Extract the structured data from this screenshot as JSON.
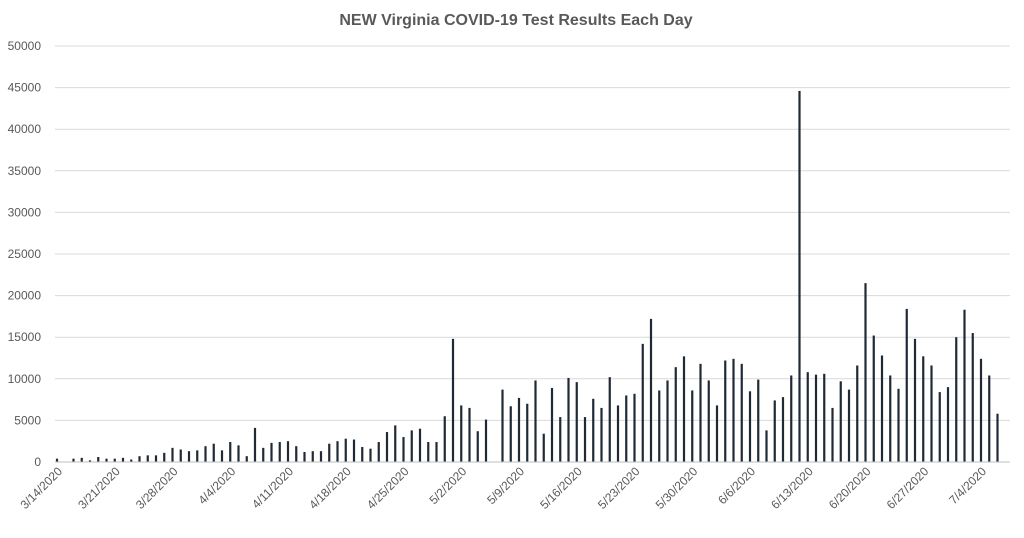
{
  "chart_data": {
    "type": "bar",
    "title": "NEW Virginia COVID-19 Test Results Each Day",
    "xlabel": "",
    "ylabel": "",
    "ylim": [
      0,
      50000
    ],
    "y_ticks": [
      "0",
      "5000",
      "10000",
      "15000",
      "20000",
      "25000",
      "30000",
      "35000",
      "40000",
      "45000",
      "50000"
    ],
    "grid": true,
    "legend": "none",
    "bar_color": "#1f2a36",
    "grid_color": "#d9d9d9",
    "text_color": "#595959",
    "x_tick_labels": [
      "3/14/2020",
      "3/21/2020",
      "3/28/2020",
      "4/4/2020",
      "4/11/2020",
      "4/18/2020",
      "4/25/2020",
      "5/2/2020",
      "5/9/2020",
      "5/16/2020",
      "5/23/2020",
      "5/30/2020",
      "6/6/2020",
      "6/13/2020",
      "6/20/2020",
      "6/27/2020",
      "7/4/2020"
    ],
    "categories": [
      "3/14/2020",
      "3/15/2020",
      "3/16/2020",
      "3/17/2020",
      "3/18/2020",
      "3/19/2020",
      "3/20/2020",
      "3/21/2020",
      "3/22/2020",
      "3/23/2020",
      "3/24/2020",
      "3/25/2020",
      "3/26/2020",
      "3/27/2020",
      "3/28/2020",
      "3/29/2020",
      "3/30/2020",
      "3/31/2020",
      "4/1/2020",
      "4/2/2020",
      "4/3/2020",
      "4/4/2020",
      "4/5/2020",
      "4/6/2020",
      "4/7/2020",
      "4/8/2020",
      "4/9/2020",
      "4/10/2020",
      "4/11/2020",
      "4/12/2020",
      "4/13/2020",
      "4/14/2020",
      "4/15/2020",
      "4/16/2020",
      "4/17/2020",
      "4/18/2020",
      "4/19/2020",
      "4/20/2020",
      "4/21/2020",
      "4/22/2020",
      "4/23/2020",
      "4/24/2020",
      "4/25/2020",
      "4/26/2020",
      "4/27/2020",
      "4/28/2020",
      "4/29/2020",
      "4/30/2020",
      "5/1/2020",
      "5/2/2020",
      "5/3/2020",
      "5/4/2020",
      "5/5/2020",
      "5/6/2020",
      "5/7/2020",
      "5/8/2020",
      "5/9/2020",
      "5/10/2020",
      "5/11/2020",
      "5/12/2020",
      "5/13/2020",
      "5/14/2020",
      "5/15/2020",
      "5/16/2020",
      "5/17/2020",
      "5/18/2020",
      "5/19/2020",
      "5/20/2020",
      "5/21/2020",
      "5/22/2020",
      "5/23/2020",
      "5/24/2020",
      "5/25/2020",
      "5/26/2020",
      "5/27/2020",
      "5/28/2020",
      "5/29/2020",
      "5/30/2020",
      "5/31/2020",
      "6/1/2020",
      "6/2/2020",
      "6/3/2020",
      "6/4/2020",
      "6/5/2020",
      "6/6/2020",
      "6/7/2020",
      "6/8/2020",
      "6/9/2020",
      "6/10/2020",
      "6/11/2020",
      "6/12/2020",
      "6/13/2020",
      "6/14/2020",
      "6/15/2020",
      "6/16/2020",
      "6/17/2020",
      "6/18/2020",
      "6/19/2020",
      "6/20/2020",
      "6/21/2020",
      "6/22/2020",
      "6/23/2020",
      "6/24/2020",
      "6/25/2020",
      "6/26/2020",
      "6/27/2020",
      "6/28/2020",
      "6/29/2020",
      "6/30/2020",
      "7/1/2020",
      "7/2/2020",
      "7/3/2020",
      "7/4/2020",
      "7/5/2020",
      "7/6/2020"
    ],
    "values": [
      400,
      0,
      400,
      500,
      200,
      600,
      400,
      400,
      500,
      300,
      700,
      800,
      800,
      1100,
      1700,
      1500,
      1300,
      1400,
      1900,
      2200,
      1400,
      2400,
      2000,
      700,
      4100,
      1700,
      2300,
      2400,
      2500,
      1900,
      1200,
      1300,
      1300,
      2200,
      2500,
      2800,
      2700,
      1800,
      1600,
      2400,
      3600,
      4400,
      3000,
      3800,
      4000,
      2400,
      2400,
      5500,
      14800,
      6800,
      6500,
      3700,
      5100,
      0,
      8700,
      6700,
      7700,
      7000,
      9800,
      3400,
      8900,
      5400,
      10100,
      9600,
      5400,
      7600,
      6500,
      10200,
      6800,
      8000,
      8200,
      14200,
      17200,
      8600,
      9800,
      11400,
      12700,
      8600,
      11800,
      9800,
      6800,
      12200,
      12400,
      11800,
      8500,
      9900,
      3800,
      7400,
      7800,
      10400,
      44600,
      10800,
      10500,
      10600,
      6500,
      9700,
      8700,
      11600,
      21500,
      15200,
      12800,
      10400,
      8800,
      18400,
      14800,
      12700,
      11600,
      8400,
      9000,
      15000,
      18300,
      15500,
      12400,
      10400,
      5800
    ]
  }
}
